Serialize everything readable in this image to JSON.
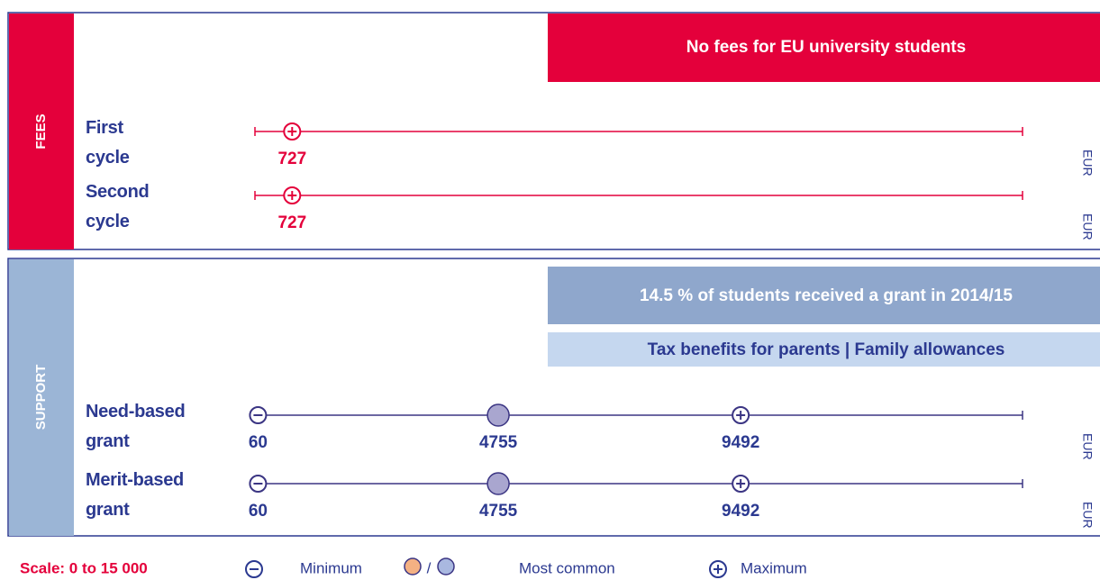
{
  "fees": {
    "label": "FEES",
    "banner": "No fees for EU university students",
    "rows": [
      {
        "name": "First cycle",
        "max": 727,
        "unit": "EUR"
      },
      {
        "name": "Second cycle",
        "max": 727,
        "unit": "EUR"
      }
    ]
  },
  "support": {
    "label": "SUPPORT",
    "banners": [
      "14.5 % of students received a grant in 2014/15",
      "Tax benefits for parents | Family allowances"
    ],
    "rows": [
      {
        "name": "Need-based grant",
        "min": 60,
        "common": 4755,
        "max": 9492,
        "unit": "EUR"
      },
      {
        "name": "Merit-based grant",
        "min": 60,
        "common": 4755,
        "max": 9492,
        "unit": "EUR"
      }
    ]
  },
  "scale": {
    "label": "Scale: 0 to 15 000",
    "min": 0,
    "max": 15000
  },
  "legend": {
    "min": "Minimum",
    "separator": "/",
    "common": "Most common",
    "max": "Maximum"
  }
}
